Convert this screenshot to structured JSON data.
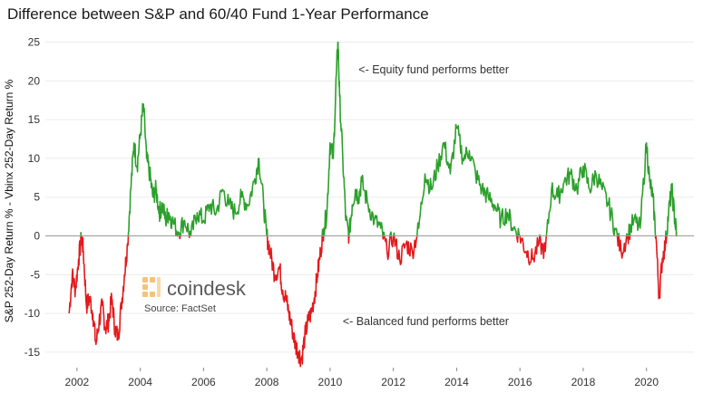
{
  "chart_data": {
    "type": "area",
    "title": "Difference between S&P and 60/40 Fund 1-Year Performance",
    "ylabel": "S&P 252-Day Return % - Vbinx 252-Day Return %",
    "xlabel": "",
    "xlim": [
      2001.0,
      2021.5
    ],
    "ylim": [
      -17,
      26
    ],
    "x_ticks": [
      2002,
      2004,
      2006,
      2008,
      2010,
      2012,
      2014,
      2016,
      2018,
      2020
    ],
    "y_ticks": [
      -15,
      -10,
      -5,
      0,
      5,
      10,
      15,
      20,
      25
    ],
    "grid": "horizontal",
    "positive_color": "#2ca02c",
    "negative_color": "#e31a1c",
    "zero_line_color": "#999999",
    "annotations": [
      {
        "text": "<- Equity fund performs better",
        "x": 2010.9,
        "y": 21
      },
      {
        "text": "<- Balanced fund performs better",
        "x": 2010.4,
        "y": -11.5
      }
    ],
    "source": "Source: FactSet",
    "logo": "coindesk",
    "series": [
      {
        "x": [
          2001.75,
          2001.85,
          2001.95,
          2002.05,
          2002.15,
          2002.2,
          2002.3,
          2002.4,
          2002.5,
          2002.6,
          2002.7,
          2002.8,
          2002.9,
          2003.0,
          2003.1,
          2003.2,
          2003.3,
          2003.4,
          2003.5,
          2003.6,
          2003.7,
          2003.8,
          2003.9,
          2004.0,
          2004.1,
          2004.2,
          2004.3,
          2004.4,
          2004.5,
          2004.6,
          2004.7,
          2004.8,
          2004.9,
          2005.0,
          2005.2,
          2005.4,
          2005.6,
          2005.8,
          2006.0,
          2006.2,
          2006.4,
          2006.6,
          2006.8,
          2007.0,
          2007.2,
          2007.4,
          2007.6,
          2007.75,
          2007.9,
          2008.0,
          2008.1,
          2008.25,
          2008.4,
          2008.5,
          2008.6,
          2008.7,
          2008.8,
          2008.9,
          2009.0,
          2009.1,
          2009.2,
          2009.3,
          2009.4,
          2009.5,
          2009.6,
          2009.7,
          2009.8,
          2009.9,
          2010.0,
          2010.1,
          2010.2,
          2010.25,
          2010.3,
          2010.4,
          2010.5,
          2010.6,
          2010.7,
          2010.8,
          2010.9,
          2011.0,
          2011.2,
          2011.4,
          2011.6,
          2011.8,
          2012.0,
          2012.2,
          2012.4,
          2012.6,
          2012.8,
          2013.0,
          2013.2,
          2013.4,
          2013.6,
          2013.8,
          2014.0,
          2014.2,
          2014.4,
          2014.6,
          2014.8,
          2015.0,
          2015.2,
          2015.4,
          2015.6,
          2015.8,
          2016.0,
          2016.2,
          2016.4,
          2016.6,
          2016.8,
          2017.0,
          2017.2,
          2017.4,
          2017.6,
          2017.8,
          2018.0,
          2018.2,
          2018.4,
          2018.6,
          2018.8,
          2019.0,
          2019.2,
          2019.4,
          2019.6,
          2019.8,
          2020.0,
          2020.1,
          2020.2,
          2020.3,
          2020.4,
          2020.5,
          2020.6,
          2020.7,
          2020.8,
          2020.9,
          2020.95
        ],
        "y": [
          -10,
          -5,
          -7,
          -3,
          0,
          -2,
          -9,
          -8,
          -10,
          -14,
          -11,
          -9,
          -12,
          -11,
          -8,
          -12,
          -13,
          -9,
          -5,
          -1,
          6,
          12,
          9,
          13,
          17,
          10,
          8,
          5,
          6,
          3,
          4,
          2,
          3,
          2,
          0.5,
          2,
          0,
          3,
          2,
          4,
          3,
          6,
          4,
          3,
          5,
          4,
          7,
          10,
          4,
          0,
          -2,
          -5,
          -4,
          -7,
          -8,
          -10,
          -12,
          -14,
          -15,
          -16,
          -13,
          -11,
          -10,
          -8,
          -5,
          -2,
          1,
          3,
          12,
          10,
          21,
          25,
          18,
          10,
          2,
          0,
          4,
          6,
          5,
          7,
          4,
          2,
          1,
          -2,
          0,
          -3,
          -1,
          -2,
          1,
          8,
          6,
          9,
          12,
          8,
          14,
          10,
          11,
          8,
          6,
          5,
          4,
          2,
          3,
          1,
          0,
          -2,
          -3,
          -1,
          -2,
          6,
          5,
          7,
          8,
          6,
          9,
          6,
          8,
          6,
          4,
          1,
          -2,
          0,
          2,
          1,
          12,
          7,
          5,
          0,
          -8,
          -3,
          -1,
          3,
          6,
          2,
          0.5
        ]
      }
    ]
  }
}
